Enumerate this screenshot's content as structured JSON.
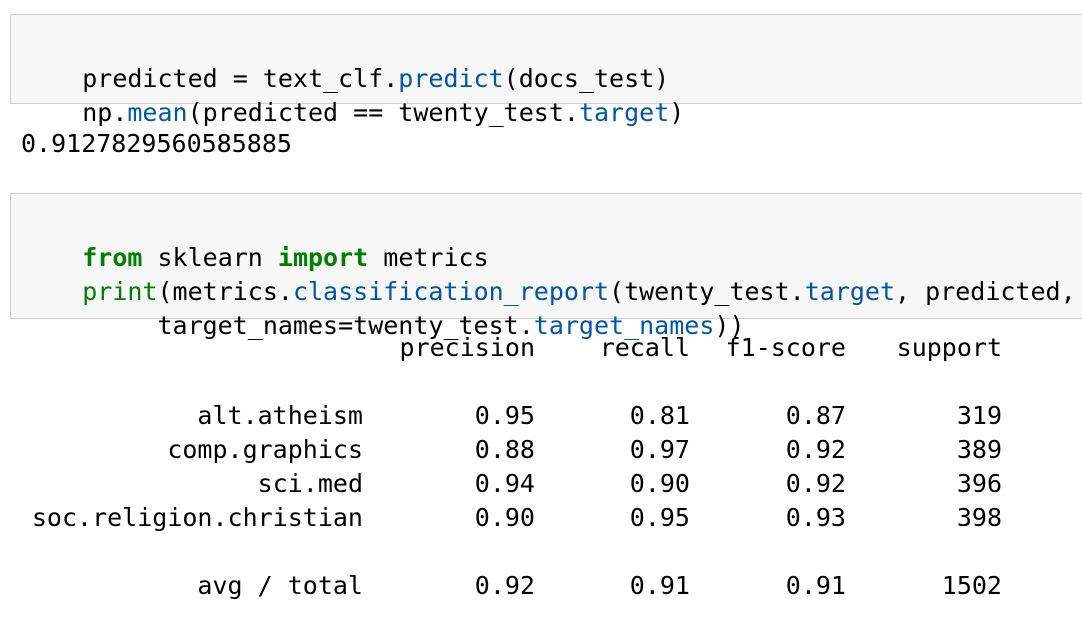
{
  "cell1": {
    "line1": {
      "a": "predicted = text_clf.",
      "b": "predict",
      "c": "(docs_test)"
    },
    "line2": {
      "a": "np.",
      "b": "mean",
      "c": "(predicted == twenty_test.",
      "d": "target",
      "e": ")"
    }
  },
  "output1": "0.9127829560585885",
  "cell2": {
    "line1": {
      "kw1": "from",
      "a": " sklearn ",
      "kw2": "import",
      "b": " metrics"
    },
    "line2": {
      "fn": "print",
      "a": "(metrics.",
      "b": "classification_report",
      "c": "(twenty_test.",
      "d": "target",
      "e": ", predicted,"
    },
    "line3": {
      "a": "     target_names=twenty_test.",
      "b": "target_names",
      "c": "))"
    }
  },
  "report": {
    "headers": [
      "precision",
      "recall",
      "f1-score",
      "support"
    ],
    "rows": [
      {
        "label": "alt.atheism",
        "precision": "0.95",
        "recall": "0.81",
        "f1": "0.87",
        "support": "319"
      },
      {
        "label": "comp.graphics",
        "precision": "0.88",
        "recall": "0.97",
        "f1": "0.92",
        "support": "389"
      },
      {
        "label": "sci.med",
        "precision": "0.94",
        "recall": "0.90",
        "f1": "0.92",
        "support": "396"
      },
      {
        "label": "soc.religion.christian",
        "precision": "0.90",
        "recall": "0.95",
        "f1": "0.93",
        "support": "398"
      }
    ],
    "total": {
      "label": "avg / total",
      "precision": "0.92",
      "recall": "0.91",
      "f1": "0.91",
      "support": "1502"
    }
  },
  "colors": {
    "keyword": "#008000",
    "function": "#0055aa",
    "cell_background": "#f7f7f7",
    "cell_border": "#cfcfcf"
  }
}
